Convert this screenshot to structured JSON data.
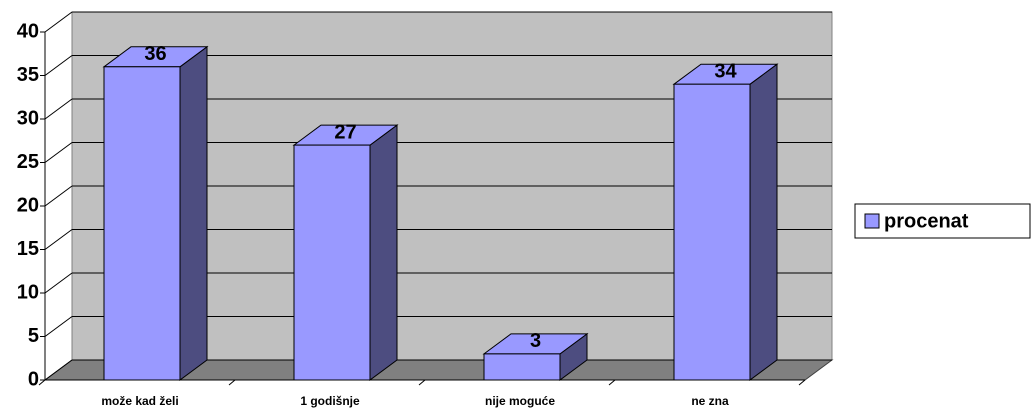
{
  "chart_data": {
    "type": "bar3d",
    "categories": [
      "može kad želi",
      "1 godišnje",
      "nije moguće",
      "ne zna"
    ],
    "series": [
      {
        "name": "procenat",
        "color": "#9999ff",
        "values": [
          36,
          27,
          3,
          34
        ]
      }
    ],
    "ylim": [
      0,
      40
    ],
    "yticks": [
      0,
      5,
      10,
      15,
      20,
      25,
      30,
      35,
      40
    ],
    "grid": true,
    "legend": "right"
  }
}
